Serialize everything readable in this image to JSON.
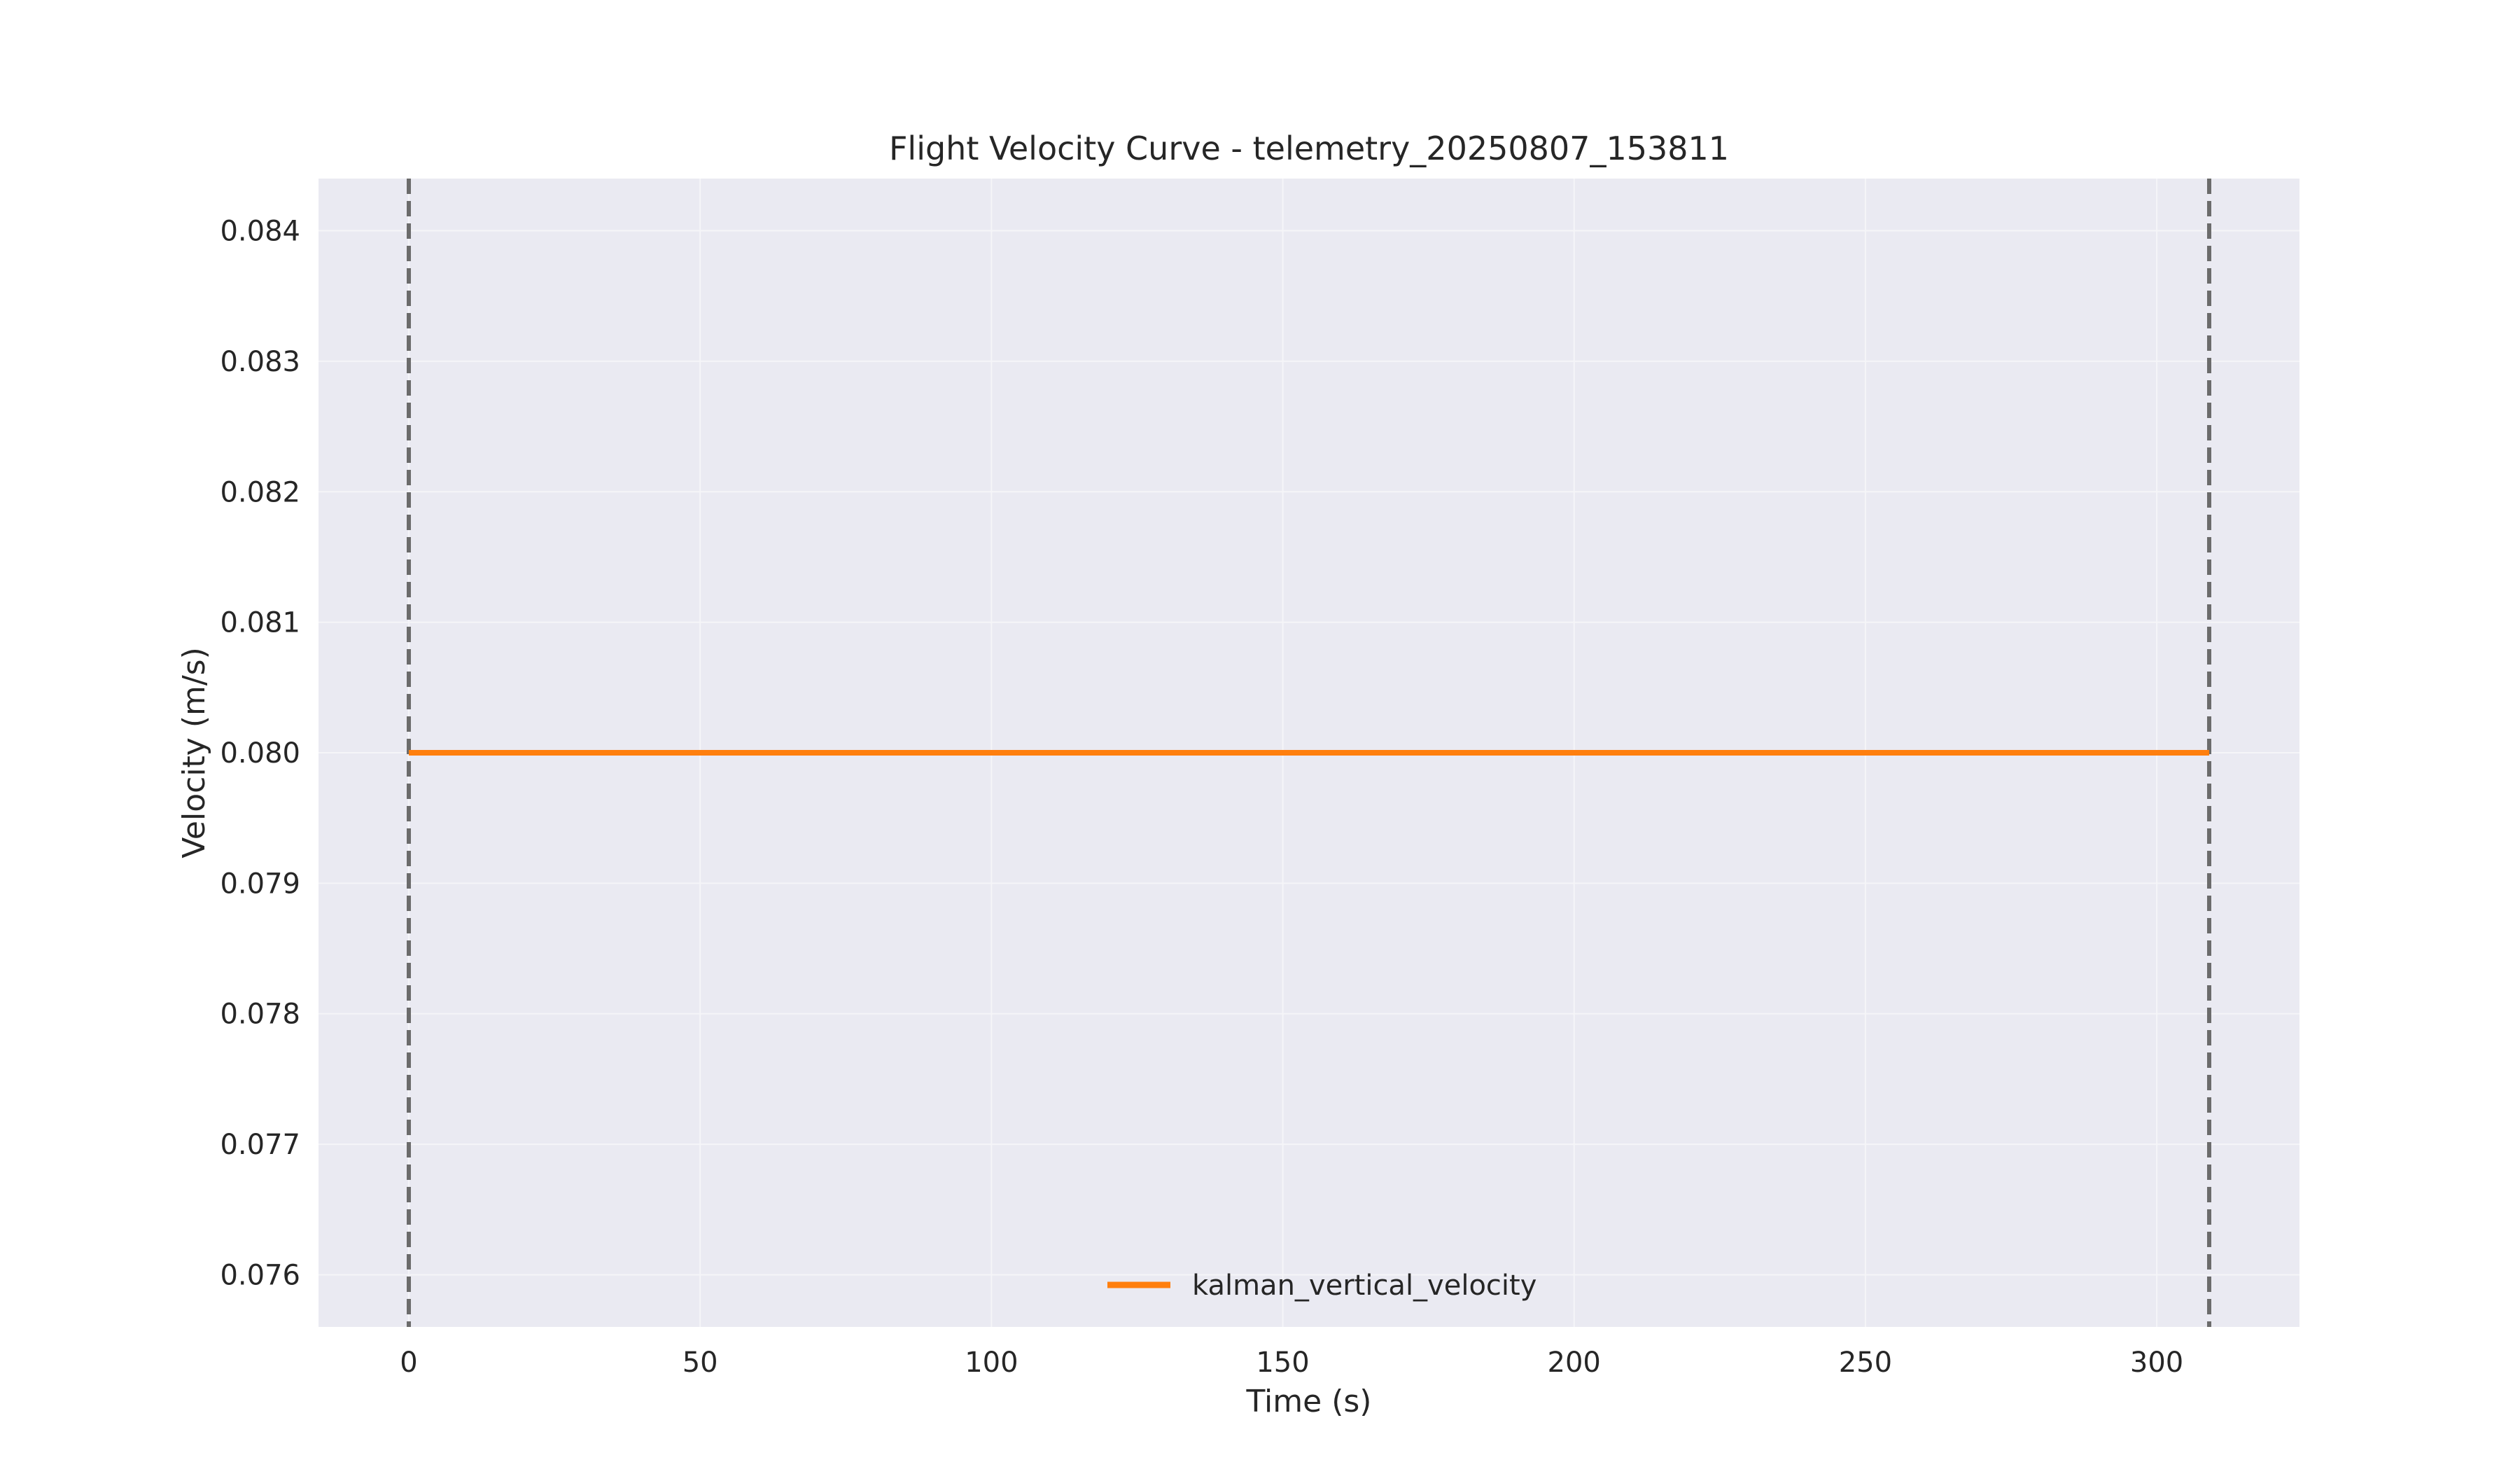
{
  "chart_data": {
    "type": "line",
    "title": "Flight Velocity Curve - telemetry_20250807_153811",
    "xlabel": "Time (s)",
    "ylabel": "Velocity (m/s)",
    "xlim": [
      -15.5,
      324.5
    ],
    "ylim": [
      0.0756,
      0.0844
    ],
    "x_ticks": [
      0,
      50,
      100,
      150,
      200,
      250,
      300
    ],
    "x_tick_labels": [
      "0",
      "50",
      "100",
      "150",
      "200",
      "250",
      "300"
    ],
    "y_ticks": [
      0.076,
      0.077,
      0.078,
      0.079,
      0.08,
      0.081,
      0.082,
      0.083,
      0.084
    ],
    "y_tick_labels": [
      "0.076",
      "0.077",
      "0.078",
      "0.079",
      "0.080",
      "0.081",
      "0.082",
      "0.083",
      "0.084"
    ],
    "grid": true,
    "legend_position": "lower center",
    "series": [
      {
        "name": "kalman_vertical_velocity",
        "color": "#ff7f0e",
        "x": [
          0,
          309
        ],
        "y": [
          0.08,
          0.08
        ]
      }
    ],
    "vertical_markers": [
      {
        "x": 0,
        "style": "dashed",
        "color": "#6b6b6b"
      },
      {
        "x": 309,
        "style": "dashed",
        "color": "#6b6b6b"
      }
    ],
    "colors": {
      "plot_background": "#eaeaf2",
      "grid": "#f5f5f8",
      "text": "#262626"
    }
  }
}
